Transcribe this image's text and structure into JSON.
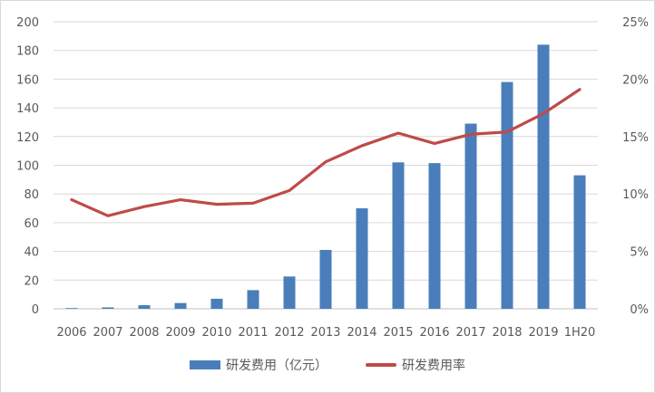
{
  "chart_data": {
    "type": "bar",
    "categories": [
      "2006",
      "2007",
      "2008",
      "2009",
      "2010",
      "2011",
      "2012",
      "2013",
      "2014",
      "2015",
      "2016",
      "2017",
      "2018",
      "2019",
      "1H20"
    ],
    "series": [
      {
        "name": "研发费用（亿元）",
        "type": "bar",
        "axis": "left",
        "values": [
          0.5,
          1,
          2.5,
          4,
          7,
          13,
          22.5,
          41,
          70,
          102,
          101.5,
          129,
          158,
          184,
          93
        ]
      },
      {
        "name": "研发费用率",
        "type": "line",
        "axis": "right",
        "values": [
          9.5,
          8.1,
          8.9,
          9.5,
          9.1,
          9.2,
          10.3,
          12.8,
          14.2,
          15.3,
          14.4,
          15.2,
          15.4,
          17.0,
          19.1
        ]
      }
    ],
    "ylim": [
      0,
      200
    ],
    "y_ticks": [
      "0",
      "20",
      "40",
      "60",
      "80",
      "100",
      "120",
      "140",
      "160",
      "180",
      "200"
    ],
    "y2lim": [
      0,
      25
    ],
    "y2_ticks": [
      "0%",
      "5%",
      "10%",
      "15%",
      "20%",
      "25%"
    ],
    "grid": true,
    "legend_position": "bottom",
    "colors": {
      "bar": "#4a7ebb",
      "line": "#be4b48",
      "grid": "#d9d9d9",
      "axis": "#bfbfbf"
    }
  }
}
